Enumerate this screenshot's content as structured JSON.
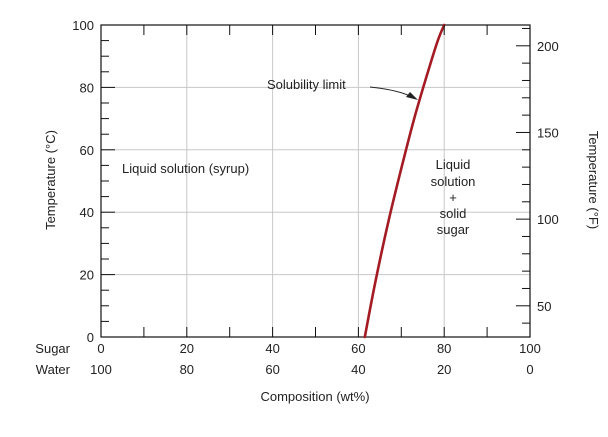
{
  "chart_data": {
    "type": "line",
    "xlabel": "Composition (wt%)",
    "ylabel_left": "Temperature (°C)",
    "ylabel_right": "Temperature (°F)",
    "xlim": [
      0,
      100
    ],
    "ylim": [
      0,
      100
    ],
    "y2lim_fahrenheit": [
      32,
      212
    ],
    "grid": true,
    "x_ticks": [
      0,
      20,
      40,
      60,
      80,
      100
    ],
    "y_ticks": [
      0,
      20,
      40,
      60,
      80,
      100
    ],
    "y2_ticks": [
      50,
      100,
      150,
      200
    ],
    "composition_rows": [
      {
        "name": "Sugar",
        "labels": [
          "0",
          "20",
          "40",
          "60",
          "80",
          "100"
        ]
      },
      {
        "name": "Water",
        "labels": [
          "100",
          "80",
          "60",
          "40",
          "20",
          "0"
        ]
      }
    ],
    "y_tick_labels": [
      "0",
      "20",
      "40",
      "60",
      "80",
      "100"
    ],
    "y2_tick_labels": [
      "50",
      "100",
      "150",
      "200"
    ],
    "series": [
      {
        "color": "#a31c24",
        "x": [
          61.5,
          64,
          67,
          70,
          73,
          76,
          78.5,
          80
        ],
        "y": [
          0,
          18,
          37,
          54,
          70,
          84,
          95,
          100
        ]
      }
    ],
    "annotations": {
      "solubility_limit": "Solubility limit",
      "liquid_solution": "Liquid solution (syrup)",
      "mixed_region": [
        "Liquid",
        "solution",
        "+",
        "solid",
        "sugar"
      ]
    }
  }
}
